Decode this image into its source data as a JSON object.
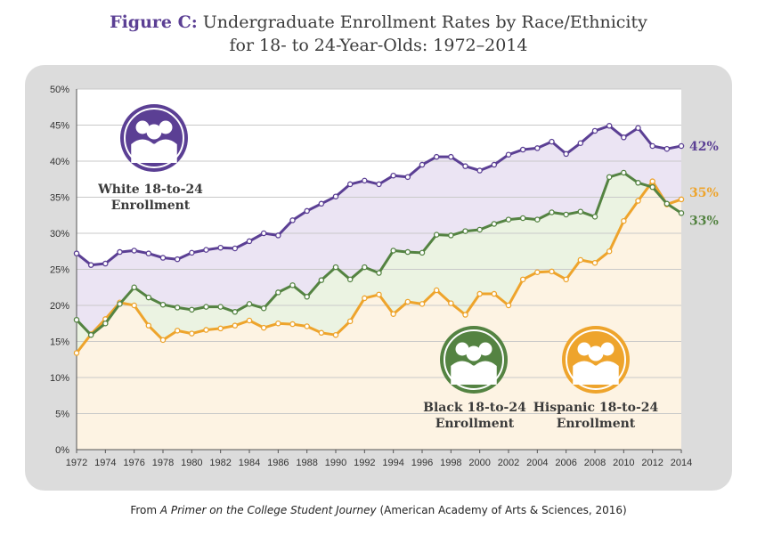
{
  "title": {
    "lead": "Figure C:",
    "line1": "Undergraduate Enrollment Rates by Race/Ethnicity",
    "line2": "for 18- to 24-Year-Olds: 1972–2014"
  },
  "caption": {
    "prefix": "From ",
    "italic": "A Primer on the College Student Journey",
    "suffix": " (American Academy of Arts & Sciences, 2016)"
  },
  "colors": {
    "white": "#5b3f94",
    "black": "#548342",
    "hispanic": "#eea42c",
    "white_fill": "#ebe4f3",
    "black_fill": "#ebf3e2",
    "hispanic_fill": "#fdf3e3"
  },
  "icons": {
    "white": "people-group-icon",
    "black": "people-group-icon",
    "hispanic": "people-group-icon"
  },
  "chart_data": {
    "type": "line",
    "title": "Undergraduate Enrollment Rates by Race/Ethnicity for 18- to 24-Year-Olds: 1972–2014",
    "xlabel": "",
    "ylabel": "",
    "x": [
      1972,
      1973,
      1974,
      1975,
      1976,
      1977,
      1978,
      1979,
      1980,
      1981,
      1982,
      1983,
      1984,
      1985,
      1986,
      1987,
      1988,
      1989,
      1990,
      1991,
      1992,
      1993,
      1994,
      1995,
      1996,
      1997,
      1998,
      1999,
      2000,
      2001,
      2002,
      2003,
      2004,
      2005,
      2006,
      2007,
      2008,
      2009,
      2010,
      2011,
      2012,
      2013,
      2014
    ],
    "xlim": [
      1972,
      2014
    ],
    "ylim": [
      0,
      50
    ],
    "y_ticks": [
      0,
      5,
      10,
      15,
      20,
      25,
      30,
      35,
      40,
      45,
      50
    ],
    "y_tick_labels": [
      "0%",
      "5%",
      "10%",
      "15%",
      "20%",
      "25%",
      "30%",
      "35%",
      "40%",
      "45%",
      "50%"
    ],
    "x_ticks": [
      1972,
      1974,
      1976,
      1978,
      1980,
      1982,
      1984,
      1986,
      1988,
      1990,
      1992,
      1994,
      1996,
      1998,
      2000,
      2002,
      2004,
      2006,
      2008,
      2010,
      2012,
      2014
    ],
    "x_tick_labels": [
      "1972",
      "1974",
      "1976",
      "1978",
      "1980",
      "1982",
      "1984",
      "1986",
      "1988",
      "1990",
      "1992",
      "1994",
      "1996",
      "1998",
      "2000",
      "2002",
      "2004",
      "2006",
      "2008",
      "2010",
      "2012",
      "2014"
    ],
    "grid": true,
    "series": [
      {
        "key": "white",
        "name": "White 18-to-24 Enrollment",
        "label_lines": [
          "White 18-to-24",
          "Enrollment"
        ],
        "end_label": "42%",
        "values": [
          27.2,
          25.6,
          25.8,
          27.4,
          27.6,
          27.2,
          26.6,
          26.4,
          27.3,
          27.7,
          28.0,
          27.9,
          28.9,
          30.0,
          29.7,
          31.8,
          33.1,
          34.1,
          35.1,
          36.8,
          37.3,
          36.8,
          38.0,
          37.8,
          39.5,
          40.6,
          40.6,
          39.3,
          38.7,
          39.5,
          40.9,
          41.6,
          41.8,
          42.7,
          41.0,
          42.5,
          44.2,
          44.9,
          43.3,
          44.6,
          42.1,
          41.7,
          42.1
        ]
      },
      {
        "key": "black",
        "name": "Black 18-to-24 Enrollment",
        "label_lines": [
          "Black 18-to-24",
          "Enrollment"
        ],
        "end_label": "33%",
        "values": [
          18.0,
          15.9,
          17.5,
          20.2,
          22.5,
          21.1,
          20.1,
          19.7,
          19.4,
          19.8,
          19.8,
          19.1,
          20.2,
          19.6,
          21.8,
          22.8,
          21.2,
          23.5,
          25.3,
          23.6,
          25.3,
          24.5,
          27.6,
          27.4,
          27.3,
          29.8,
          29.7,
          30.3,
          30.5,
          31.3,
          31.9,
          32.1,
          31.9,
          32.9,
          32.6,
          33.0,
          32.3,
          37.8,
          38.4,
          37.0,
          36.4,
          34.1,
          32.8
        ]
      },
      {
        "key": "hispanic",
        "name": "Hispanic 18-to-24 Enrollment",
        "label_lines": [
          "Hispanic 18-to-24",
          "Enrollment"
        ],
        "end_label": "35%",
        "values": [
          13.4,
          16.0,
          18.1,
          20.4,
          20.0,
          17.2,
          15.2,
          16.5,
          16.1,
          16.6,
          16.8,
          17.2,
          17.9,
          16.9,
          17.5,
          17.4,
          17.1,
          16.2,
          15.9,
          17.8,
          21.0,
          21.5,
          18.8,
          20.5,
          20.2,
          22.1,
          20.3,
          18.7,
          21.6,
          21.6,
          20.0,
          23.6,
          24.6,
          24.7,
          23.6,
          26.3,
          25.9,
          27.5,
          31.7,
          34.5,
          37.2,
          34.0,
          34.7
        ]
      }
    ]
  }
}
